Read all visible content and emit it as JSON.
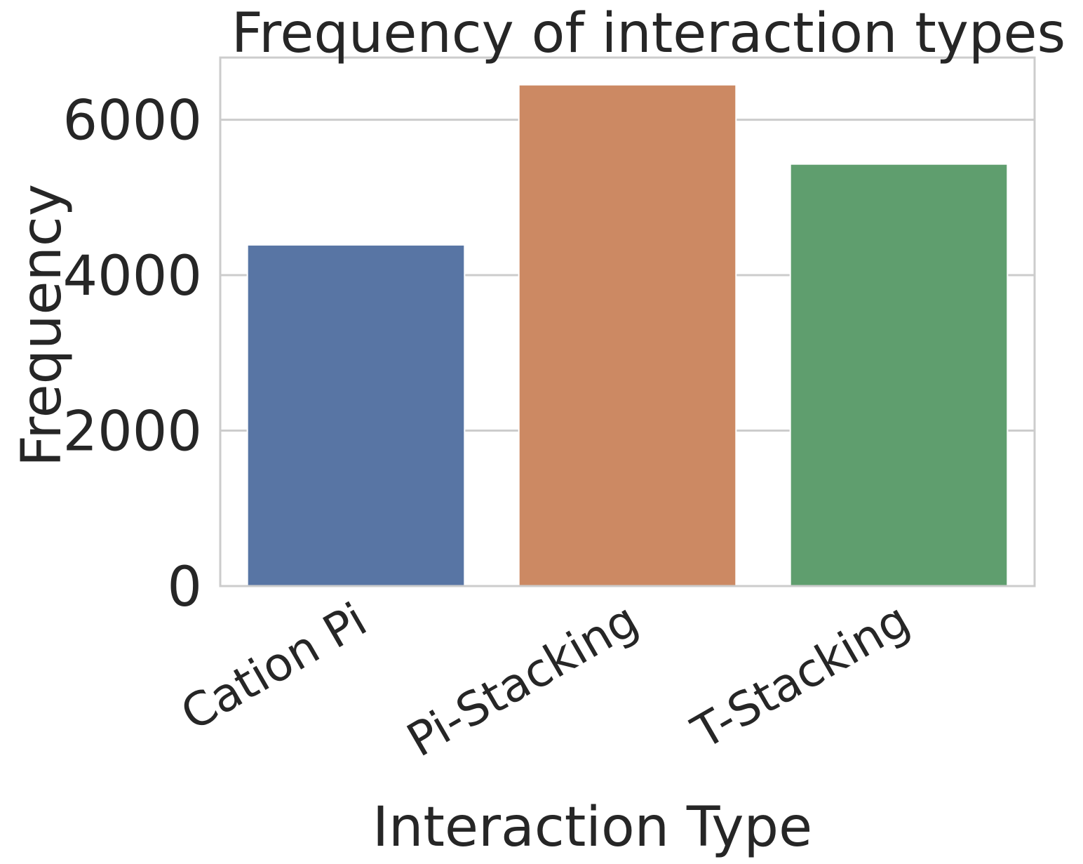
{
  "chart_data": {
    "type": "bar",
    "title": "Frequency of interaction types",
    "xlabel": "Interaction Type",
    "ylabel": "Frequency",
    "categories": [
      "Cation Pi",
      "Pi-Stacking",
      "T-Stacking"
    ],
    "values": [
      4390,
      6450,
      5430
    ],
    "colors": [
      "#5875a4",
      "#cc8963",
      "#5f9e6e"
    ],
    "ylim": [
      0,
      6800
    ],
    "yticks": [
      0,
      2000,
      4000,
      6000
    ],
    "ytick_labels": [
      "0",
      "2000",
      "4000",
      "6000"
    ],
    "grid": "y-axis only",
    "legend": "none",
    "xtick_rotation": "30 degrees"
  }
}
